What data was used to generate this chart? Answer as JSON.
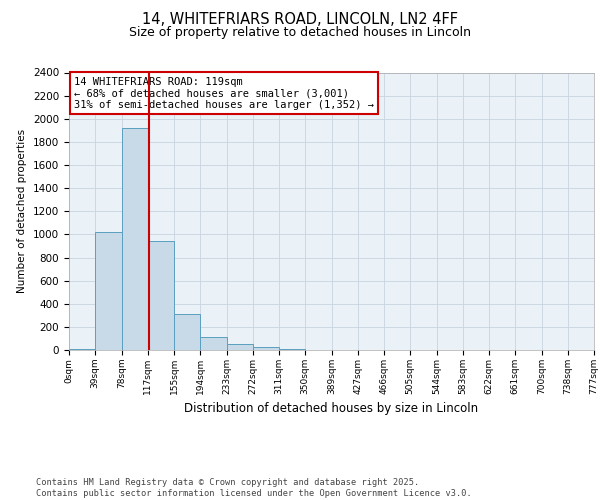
{
  "title_line1": "14, WHITEFRIARS ROAD, LINCOLN, LN2 4FF",
  "title_line2": "Size of property relative to detached houses in Lincoln",
  "xlabel": "Distribution of detached houses by size in Lincoln",
  "ylabel": "Number of detached properties",
  "bin_labels": [
    "0sqm",
    "39sqm",
    "78sqm",
    "117sqm",
    "155sqm",
    "194sqm",
    "233sqm",
    "272sqm",
    "311sqm",
    "350sqm",
    "389sqm",
    "427sqm",
    "466sqm",
    "505sqm",
    "544sqm",
    "583sqm",
    "622sqm",
    "661sqm",
    "700sqm",
    "738sqm",
    "777sqm"
  ],
  "bar_values": [
    10,
    1020,
    1920,
    940,
    315,
    115,
    55,
    25,
    10,
    3,
    0,
    0,
    0,
    0,
    0,
    0,
    0,
    0,
    0,
    0
  ],
  "bar_color": "#c8d9e8",
  "bar_edge_color": "#5a9fc0",
  "ylim": [
    0,
    2400
  ],
  "yticks": [
    0,
    200,
    400,
    600,
    800,
    1000,
    1200,
    1400,
    1600,
    1800,
    2000,
    2200,
    2400
  ],
  "red_line_x": 119,
  "annotation_text": "14 WHITEFRIARS ROAD: 119sqm\n← 68% of detached houses are smaller (3,001)\n31% of semi-detached houses are larger (1,352) →",
  "annotation_box_color": "#ffffff",
  "annotation_border_color": "#cc0000",
  "grid_color": "#c8d4e0",
  "background_color": "#eaf1f7",
  "footer_text": "Contains HM Land Registry data © Crown copyright and database right 2025.\nContains public sector information licensed under the Open Government Licence v3.0.",
  "bin_width": 39,
  "num_bins": 20
}
